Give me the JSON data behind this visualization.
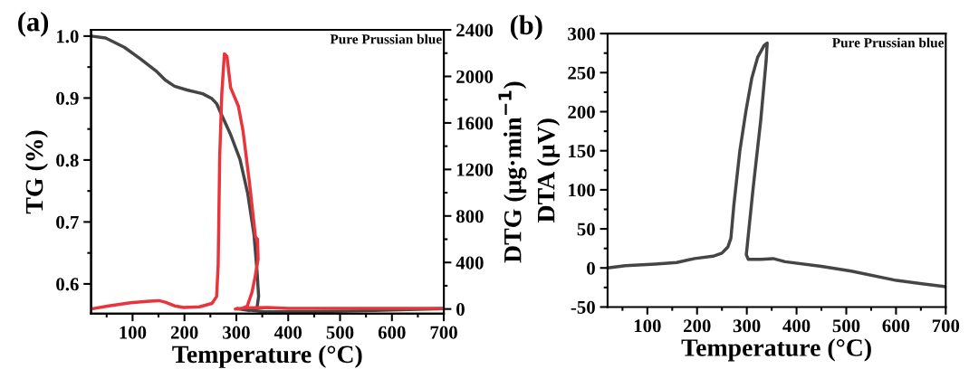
{
  "chart_data": [
    {
      "type": "line",
      "title": "(a)",
      "xlabel": "Temperature (°C)",
      "ylabel": "TG (%)",
      "y2label": "DTG (μg·min$^{−1}$)",
      "annotations": [
        "Pure Prussian blue"
      ],
      "grid": false,
      "legend": false,
      "marker": "none",
      "line_style": "solid",
      "xlim": [
        20,
        700
      ],
      "xticks": [
        {
          "value": 50,
          "label": null
        },
        100,
        {
          "value": 150,
          "label": null
        },
        200,
        {
          "value": 250,
          "label": null
        },
        300,
        {
          "value": 350,
          "label": null
        },
        400,
        {
          "value": 450,
          "label": null
        },
        500,
        {
          "value": 550,
          "label": null
        },
        600,
        {
          "value": 650,
          "label": null
        },
        700
      ],
      "ylim": [
        0.552,
        1.01
      ],
      "yticks": [
        0.6,
        {
          "value": 0.65,
          "label": null
        },
        0.7,
        {
          "value": 0.75,
          "label": null
        },
        0.8,
        {
          "value": 0.85,
          "label": null
        },
        0.9,
        {
          "value": 0.95,
          "label": null
        },
        {
          "value": 1.0,
          "label": "1.0"
        }
      ],
      "y2lim": [
        -40,
        2400
      ],
      "y2ticks": [
        0,
        {
          "value": 200,
          "label": null
        },
        400,
        {
          "value": 600,
          "label": null
        },
        800,
        {
          "value": 1000,
          "label": null
        },
        1200,
        {
          "value": 1400,
          "label": null
        },
        1600,
        {
          "value": 1800,
          "label": null
        },
        2000,
        {
          "value": 2200,
          "label": null
        },
        2400
      ],
      "series": [
        {
          "color": "#454545",
          "axis": "y",
          "x": [
            20,
            48,
            84,
            114,
            145,
            163,
            181,
            205,
            235,
            253,
            262,
            271,
            289,
            307,
            322,
            334,
            340,
            343,
            340,
            325,
            301,
            355,
            446,
            566,
            700
          ],
          "values": [
            1.0,
            0.997,
            0.982,
            0.964,
            0.944,
            0.929,
            0.919,
            0.913,
            0.907,
            0.899,
            0.891,
            0.874,
            0.841,
            0.801,
            0.746,
            0.68,
            0.62,
            0.58,
            0.562,
            0.557,
            0.56,
            0.555,
            0.555,
            0.557,
            0.56
          ]
        },
        {
          "color": "#e8343a",
          "axis": "y2",
          "x": [
            20,
            54,
            96,
            133,
            151,
            163,
            181,
            199,
            229,
            253,
            262,
            265,
            268,
            272,
            277,
            282,
            289,
            304,
            313,
            325,
            337,
            341,
            342,
            336,
            330,
            321,
            310,
            298,
            320,
            360,
            400,
            500,
            600,
            700
          ],
          "values": [
            0,
            27,
            54,
            67,
            72,
            59,
            27,
            13,
            19,
            48,
            107,
            375,
            1314,
            1851,
            2194,
            2172,
            1904,
            1743,
            1529,
            1100,
            617,
            600,
            430,
            270,
            141,
            24,
            5,
            0,
            10,
            13,
            5,
            5,
            5,
            5
          ]
        }
      ]
    },
    {
      "type": "line",
      "title": "(b)",
      "xlabel": "Temperature (°C)",
      "ylabel": "DTA (μV)",
      "annotations": [
        "Pure Prussian blue"
      ],
      "grid": false,
      "legend": false,
      "marker": "none",
      "line_style": "solid",
      "xlim": [
        20,
        700
      ],
      "xticks": [
        {
          "value": 50,
          "label": null
        },
        100,
        {
          "value": 150,
          "label": null
        },
        200,
        {
          "value": 250,
          "label": null
        },
        300,
        {
          "value": 350,
          "label": null
        },
        400,
        {
          "value": 450,
          "label": null
        },
        500,
        {
          "value": 550,
          "label": null
        },
        600,
        {
          "value": 650,
          "label": null
        },
        700
      ],
      "ylim": [
        -50,
        300
      ],
      "yticks": [
        -50,
        {
          "value": -25,
          "label": null
        },
        0,
        {
          "value": 25,
          "label": null
        },
        50,
        {
          "value": 75,
          "label": null
        },
        100,
        {
          "value": 125,
          "label": null
        },
        150,
        {
          "value": 175,
          "label": null
        },
        200,
        {
          "value": 225,
          "label": null
        },
        250,
        {
          "value": 275,
          "label": null
        },
        300
      ],
      "series": [
        {
          "color": "#454545",
          "x": [
            20,
            56,
            116,
            159,
            195,
            232,
            250,
            262,
            268,
            274,
            286,
            298,
            310,
            322,
            335,
            341,
            339,
            328,
            313,
            303,
            299,
            303,
            328,
            353,
            377,
            450,
            510,
            601,
            700
          ],
          "values": [
            0,
            3,
            5,
            7,
            12,
            15,
            19,
            27,
            38,
            81,
            150,
            200,
            243,
            270,
            285,
            288,
            266,
            189,
            104,
            42,
            17,
            11,
            11,
            12,
            8,
            2,
            -4,
            -16,
            -24
          ]
        }
      ]
    }
  ]
}
